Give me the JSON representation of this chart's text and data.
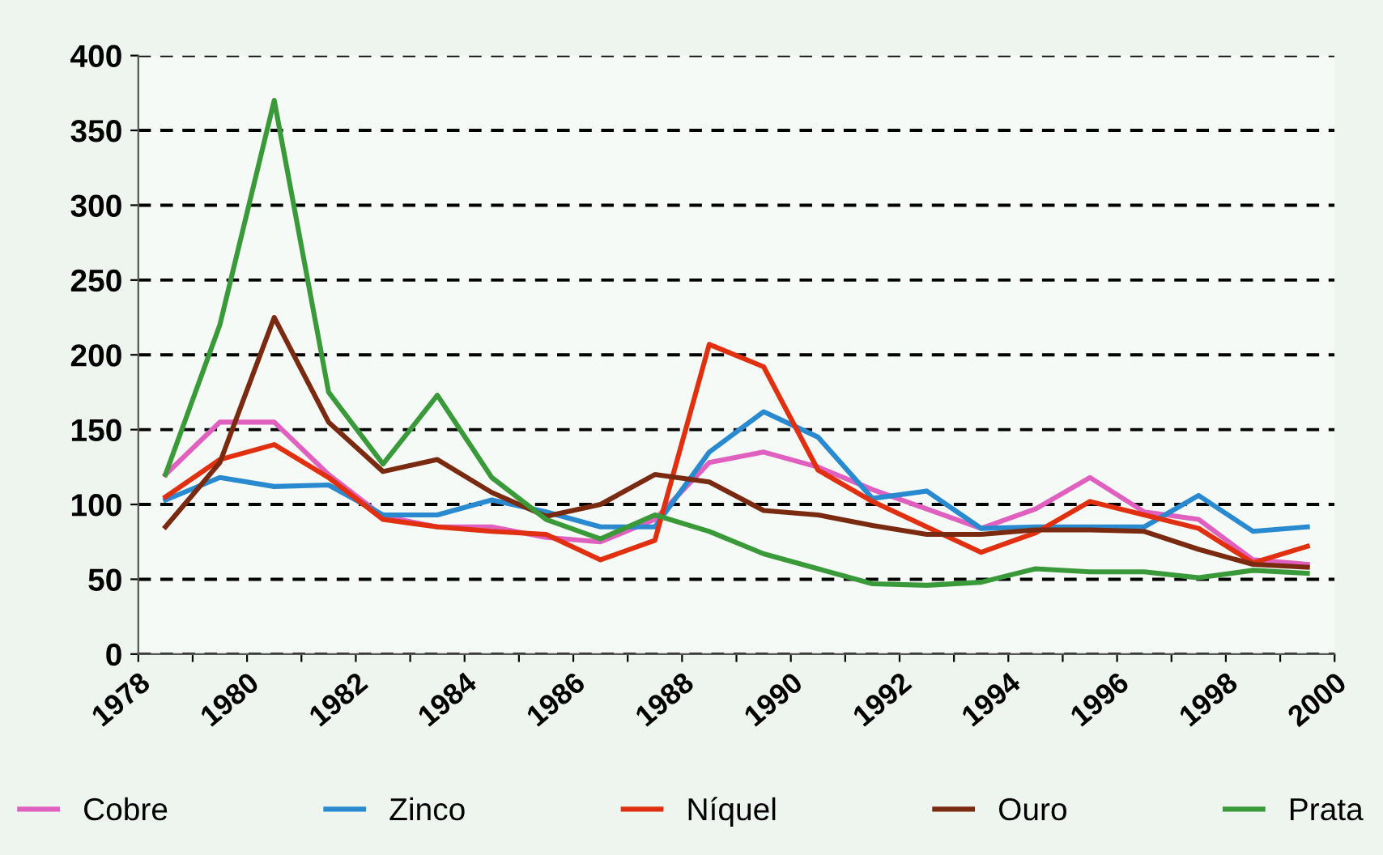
{
  "chart_data": {
    "type": "line",
    "x": [
      1978.5,
      1979.5,
      1980.5,
      1981.5,
      1982.5,
      1983.5,
      1984.5,
      1985.5,
      1986.5,
      1987.5,
      1988.5,
      1989.5,
      1990.5,
      1991.5,
      1992.5,
      1993.5,
      1994.5,
      1995.5,
      1996.5,
      1997.5,
      1998.5,
      1999.5
    ],
    "series": [
      {
        "name": "Cobre",
        "color": "#e060c0",
        "values": [
          120,
          155,
          155,
          120,
          92,
          85,
          85,
          78,
          75,
          90,
          128,
          135,
          125,
          110,
          97,
          84,
          97,
          118,
          95,
          90,
          63,
          60
        ]
      },
      {
        "name": "Zinco",
        "color": "#2a8ad0",
        "values": [
          103,
          118,
          112,
          113,
          93,
          93,
          103,
          95,
          85,
          85,
          135,
          162,
          145,
          104,
          109,
          84,
          85,
          85,
          85,
          106,
          82,
          85
        ]
      },
      {
        "name": "Níquel",
        "color": "#e03010",
        "values": [
          105,
          130,
          140,
          118,
          90,
          85,
          82,
          80,
          63,
          76,
          207,
          192,
          123,
          102,
          85,
          68,
          81,
          102,
          93,
          84,
          61,
          72
        ]
      },
      {
        "name": "Ouro",
        "color": "#7a2a10",
        "values": [
          85,
          128,
          225,
          155,
          122,
          130,
          108,
          92,
          100,
          120,
          115,
          96,
          93,
          86,
          80,
          80,
          83,
          83,
          82,
          70,
          60,
          58
        ]
      },
      {
        "name": "Prata",
        "color": "#3a9a3a",
        "values": [
          120,
          220,
          370,
          175,
          127,
          173,
          118,
          90,
          77,
          93,
          82,
          67,
          57,
          47,
          46,
          48,
          57,
          55,
          55,
          51,
          56,
          54
        ]
      }
    ],
    "xlim": [
      1978,
      2000
    ],
    "xticks": [
      1978,
      {
        "value": 1979,
        "label": null
      },
      1980,
      {
        "value": 1981,
        "label": null
      },
      1982,
      {
        "value": 1983,
        "label": null
      },
      1984,
      {
        "value": 1985,
        "label": null
      },
      1986,
      {
        "value": 1987,
        "label": null
      },
      1988,
      {
        "value": 1989,
        "label": null
      },
      1990,
      {
        "value": 1991,
        "label": null
      },
      1992,
      {
        "value": 1993,
        "label": null
      },
      1994,
      {
        "value": 1995,
        "label": null
      },
      1996,
      {
        "value": 1997,
        "label": null
      },
      1998,
      {
        "value": 1999,
        "label": null
      },
      2000
    ],
    "ylim": [
      0,
      400
    ],
    "yticks": [
      0,
      50,
      100,
      150,
      200,
      250,
      300,
      350,
      400
    ],
    "grid": "y",
    "legend": "bottom",
    "marker": "none",
    "line_style": "solid"
  }
}
